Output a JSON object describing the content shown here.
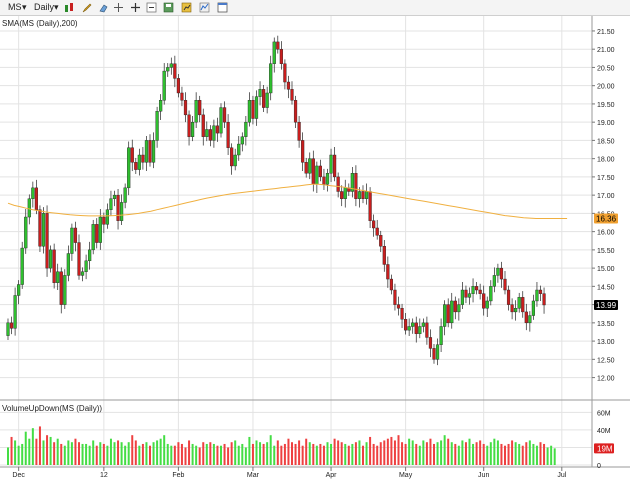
{
  "toolbar": {
    "symbol": "MS",
    "interval": "Daily",
    "icons": [
      "bar-style-icon",
      "pencil-icon",
      "eraser-icon",
      "crosshair-icon",
      "zoom-in-icon",
      "zoom-out-icon",
      "save-icon",
      "chart-settings-icon",
      "indicators-icon",
      "window-icon"
    ]
  },
  "colors": {
    "up": "#2fbf2f",
    "down": "#c81e1e",
    "sma": "#f0b040",
    "vol_up": "#44dd44",
    "vol_down": "#ee4040",
    "grid": "#e3e3e3",
    "sma_badge": "#f0a030",
    "vol_badge": "#dd2020"
  },
  "chart_data": [
    {
      "type": "candlestick",
      "title": "SMA(MS (Daily),200)",
      "y_ticks": [
        "21.50",
        "21.00",
        "20.50",
        "20.00",
        "19.50",
        "19.00",
        "18.50",
        "18.00",
        "17.50",
        "17.00",
        "16.50",
        "16.00",
        "15.50",
        "15.00",
        "14.50",
        "14.00",
        "13.50",
        "13.00",
        "12.50",
        "12.00"
      ],
      "x_labels": [
        "Dec",
        "12",
        "Feb",
        "Mar",
        "Apr",
        "May",
        "Jun",
        "Jul"
      ],
      "x_label_index": [
        3,
        27,
        48,
        69,
        91,
        112,
        134,
        156
      ],
      "ylim": [
        11.55,
        21.8
      ],
      "last_price": "13.99",
      "sma_value": "16.36",
      "grid": true,
      "candles": [
        [
          13.15,
          13.5
        ],
        [
          13.5,
          13.35
        ],
        [
          13.35,
          14.25
        ],
        [
          14.25,
          14.55
        ],
        [
          14.55,
          15.55
        ],
        [
          15.55,
          16.4
        ],
        [
          16.4,
          16.9
        ],
        [
          16.9,
          17.2
        ],
        [
          17.2,
          16.6
        ],
        [
          16.6,
          15.6
        ],
        [
          15.6,
          16.5
        ],
        [
          16.5,
          15.0
        ],
        [
          15.0,
          15.5
        ],
        [
          15.5,
          14.6
        ],
        [
          14.6,
          14.9
        ],
        [
          14.9,
          14.0
        ],
        [
          14.0,
          14.8
        ],
        [
          14.8,
          15.4
        ],
        [
          15.4,
          16.1
        ],
        [
          16.1,
          15.7
        ],
        [
          15.7,
          14.8
        ],
        [
          14.8,
          14.9
        ],
        [
          14.9,
          15.2
        ],
        [
          15.2,
          15.5
        ],
        [
          15.5,
          16.2
        ],
        [
          16.2,
          15.7
        ],
        [
          15.7,
          16.4
        ],
        [
          16.4,
          16.2
        ],
        [
          16.2,
          16.6
        ],
        [
          16.6,
          16.9
        ],
        [
          16.9,
          17.0
        ],
        [
          17.0,
          16.3
        ],
        [
          16.3,
          16.8
        ],
        [
          16.8,
          17.2
        ],
        [
          17.2,
          18.3
        ],
        [
          18.3,
          17.9
        ],
        [
          17.9,
          17.7
        ],
        [
          17.7,
          18.1
        ],
        [
          18.1,
          17.9
        ],
        [
          17.9,
          18.5
        ],
        [
          18.5,
          17.9
        ],
        [
          17.9,
          18.5
        ],
        [
          18.5,
          19.3
        ],
        [
          19.3,
          19.6
        ],
        [
          19.6,
          20.4
        ],
        [
          20.4,
          20.5
        ],
        [
          20.5,
          20.6
        ],
        [
          20.6,
          20.2
        ],
        [
          20.2,
          19.8
        ],
        [
          19.8,
          19.6
        ],
        [
          19.6,
          19.2
        ],
        [
          19.2,
          18.6
        ],
        [
          18.6,
          19.0
        ],
        [
          19.0,
          19.6
        ],
        [
          19.6,
          19.2
        ],
        [
          19.2,
          18.6
        ],
        [
          18.6,
          18.8
        ],
        [
          18.8,
          18.5
        ],
        [
          18.5,
          18.9
        ],
        [
          18.9,
          18.7
        ],
        [
          18.7,
          19.4
        ],
        [
          19.4,
          19.0
        ],
        [
          19.0,
          18.3
        ],
        [
          18.3,
          17.8
        ],
        [
          17.8,
          18.1
        ],
        [
          18.1,
          18.4
        ],
        [
          18.4,
          18.6
        ],
        [
          18.6,
          19.0
        ],
        [
          19.0,
          19.6
        ],
        [
          19.6,
          19.1
        ],
        [
          19.1,
          19.7
        ],
        [
          19.7,
          19.9
        ],
        [
          19.9,
          19.4
        ],
        [
          19.4,
          19.8
        ],
        [
          19.8,
          20.6
        ],
        [
          20.6,
          21.2
        ],
        [
          21.2,
          21.0
        ],
        [
          21.0,
          20.6
        ],
        [
          20.6,
          20.1
        ],
        [
          20.1,
          19.9
        ],
        [
          19.9,
          19.6
        ],
        [
          19.6,
          19.0
        ],
        [
          19.0,
          18.5
        ],
        [
          18.5,
          17.9
        ],
        [
          17.9,
          17.6
        ],
        [
          17.6,
          18.0
        ],
        [
          18.0,
          17.3
        ],
        [
          17.3,
          17.8
        ],
        [
          17.8,
          17.5
        ],
        [
          17.5,
          17.3
        ],
        [
          17.3,
          17.6
        ],
        [
          17.6,
          18.1
        ],
        [
          18.1,
          17.5
        ],
        [
          17.5,
          17.1
        ],
        [
          17.1,
          16.9
        ],
        [
          16.9,
          17.2
        ],
        [
          17.2,
          17.1
        ],
        [
          17.1,
          17.6
        ],
        [
          17.6,
          16.9
        ],
        [
          16.9,
          17.1
        ],
        [
          17.1,
          16.9
        ],
        [
          16.9,
          17.1
        ],
        [
          17.1,
          16.3
        ],
        [
          16.3,
          16.1
        ],
        [
          16.1,
          15.9
        ],
        [
          15.9,
          15.6
        ],
        [
          15.6,
          15.1
        ],
        [
          15.1,
          14.7
        ],
        [
          14.7,
          14.4
        ],
        [
          14.4,
          14.0
        ],
        [
          14.0,
          13.9
        ],
        [
          13.9,
          13.6
        ],
        [
          13.6,
          13.3
        ],
        [
          13.3,
          13.4
        ],
        [
          13.4,
          13.5
        ],
        [
          13.5,
          13.2
        ],
        [
          13.2,
          13.4
        ],
        [
          13.4,
          13.5
        ],
        [
          13.5,
          13.1
        ],
        [
          13.1,
          12.8
        ],
        [
          12.8,
          12.5
        ],
        [
          12.5,
          12.9
        ],
        [
          12.9,
          13.4
        ],
        [
          13.4,
          14.0
        ],
        [
          14.0,
          13.5
        ],
        [
          13.5,
          14.1
        ],
        [
          14.1,
          13.8
        ],
        [
          13.8,
          14.0
        ],
        [
          14.0,
          14.4
        ],
        [
          14.4,
          14.2
        ],
        [
          14.2,
          14.3
        ],
        [
          14.3,
          14.5
        ],
        [
          14.5,
          14.4
        ],
        [
          14.4,
          14.3
        ],
        [
          14.3,
          13.9
        ],
        [
          13.9,
          14.1
        ],
        [
          14.1,
          14.5
        ],
        [
          14.5,
          14.8
        ],
        [
          14.8,
          15.0
        ],
        [
          15.0,
          14.7
        ],
        [
          14.7,
          14.4
        ],
        [
          14.4,
          14.0
        ],
        [
          14.0,
          13.8
        ],
        [
          13.8,
          13.9
        ],
        [
          13.9,
          14.2
        ],
        [
          14.2,
          13.8
        ],
        [
          13.8,
          13.5
        ],
        [
          13.5,
          13.7
        ],
        [
          13.7,
          14.1
        ],
        [
          14.1,
          14.4
        ],
        [
          14.4,
          14.3
        ],
        [
          14.3,
          13.99
        ]
      ],
      "sma": [
        16.78,
        16.72,
        16.68,
        16.64,
        16.6,
        16.57,
        16.54,
        16.52,
        16.5,
        16.48,
        16.46,
        16.45,
        16.44,
        16.43,
        16.43,
        16.43,
        16.43,
        16.44,
        16.45,
        16.46,
        16.48,
        16.5,
        16.53,
        16.56,
        16.6,
        16.64,
        16.68,
        16.72,
        16.76,
        16.8,
        16.84,
        16.88,
        16.92,
        16.95,
        16.98,
        17.01,
        17.04,
        17.06,
        17.08,
        17.1,
        17.12,
        17.14,
        17.16,
        17.18,
        17.2,
        17.22,
        17.24,
        17.26,
        17.28,
        17.3,
        17.3,
        17.28,
        17.26,
        17.24,
        17.22,
        17.19,
        17.16,
        17.13,
        17.1,
        17.07,
        17.04,
        17.01,
        16.98,
        16.95,
        16.92,
        16.89,
        16.86,
        16.83,
        16.8,
        16.77,
        16.74,
        16.71,
        16.68,
        16.65,
        16.62,
        16.59,
        16.56,
        16.53,
        16.5,
        16.47,
        16.44,
        16.42,
        16.4,
        16.38,
        16.37,
        16.36,
        16.36,
        16.36,
        16.36,
        16.36,
        16.36
      ],
      "sma_start_index": 0,
      "sma_step": 1.75
    },
    {
      "type": "bar",
      "title": "VolumeUpDown(MS (Daily))",
      "y_ticks": [
        "60M",
        "40M",
        "20M",
        "0"
      ],
      "ylim": [
        0,
        65
      ],
      "last_value": "19M",
      "values": [
        20,
        32,
        28,
        22,
        24,
        38,
        30,
        42,
        30,
        44,
        28,
        34,
        32,
        26,
        30,
        24,
        22,
        28,
        26,
        30,
        26,
        24,
        24,
        22,
        28,
        22,
        26,
        24,
        22,
        30,
        26,
        28,
        26,
        22,
        26,
        34,
        28,
        22,
        24,
        26,
        22,
        26,
        28,
        30,
        34,
        24,
        22,
        22,
        26,
        24,
        20,
        28,
        24,
        22,
        20,
        26,
        24,
        26,
        24,
        22,
        22,
        24,
        20,
        26,
        28,
        22,
        24,
        20,
        32,
        24,
        28,
        26,
        24,
        26,
        34,
        22,
        28,
        22,
        24,
        30,
        26,
        24,
        28,
        22,
        30,
        26,
        24,
        22,
        24,
        22,
        26,
        24,
        30,
        28,
        26,
        24,
        22,
        24,
        26,
        28,
        22,
        26,
        32,
        24,
        22,
        26,
        28,
        30,
        32,
        28,
        34,
        26,
        24,
        30,
        28,
        24,
        22,
        28,
        26,
        30,
        24,
        26,
        28,
        34,
        30,
        26,
        24,
        22,
        28,
        26,
        30,
        24,
        26,
        28,
        24,
        22,
        26,
        30,
        28,
        24,
        22,
        24,
        28,
        26,
        24,
        22,
        26,
        28,
        24,
        22,
        26,
        24,
        20,
        22,
        19
      ],
      "values_unit": "M"
    }
  ]
}
